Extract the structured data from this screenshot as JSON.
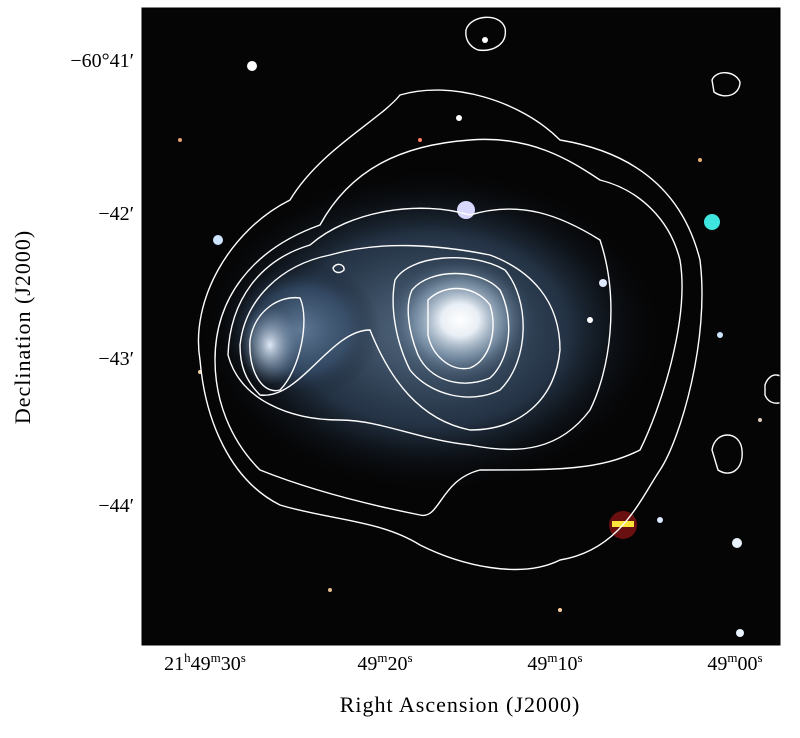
{
  "x_axis": {
    "label": "Right Ascension (J2000)",
    "ticks": [
      [
        "21",
        "h",
        "49",
        "m",
        "30",
        "s"
      ],
      [
        "49",
        "m",
        "20",
        "s"
      ],
      [
        "49",
        "m",
        "10",
        "s"
      ],
      [
        "49",
        "m",
        "00",
        "s"
      ]
    ]
  },
  "y_axis": {
    "label": "Declination (J2000)",
    "ticks": [
      "−60°41′",
      "−42′",
      "−43′",
      "−44′"
    ]
  }
}
